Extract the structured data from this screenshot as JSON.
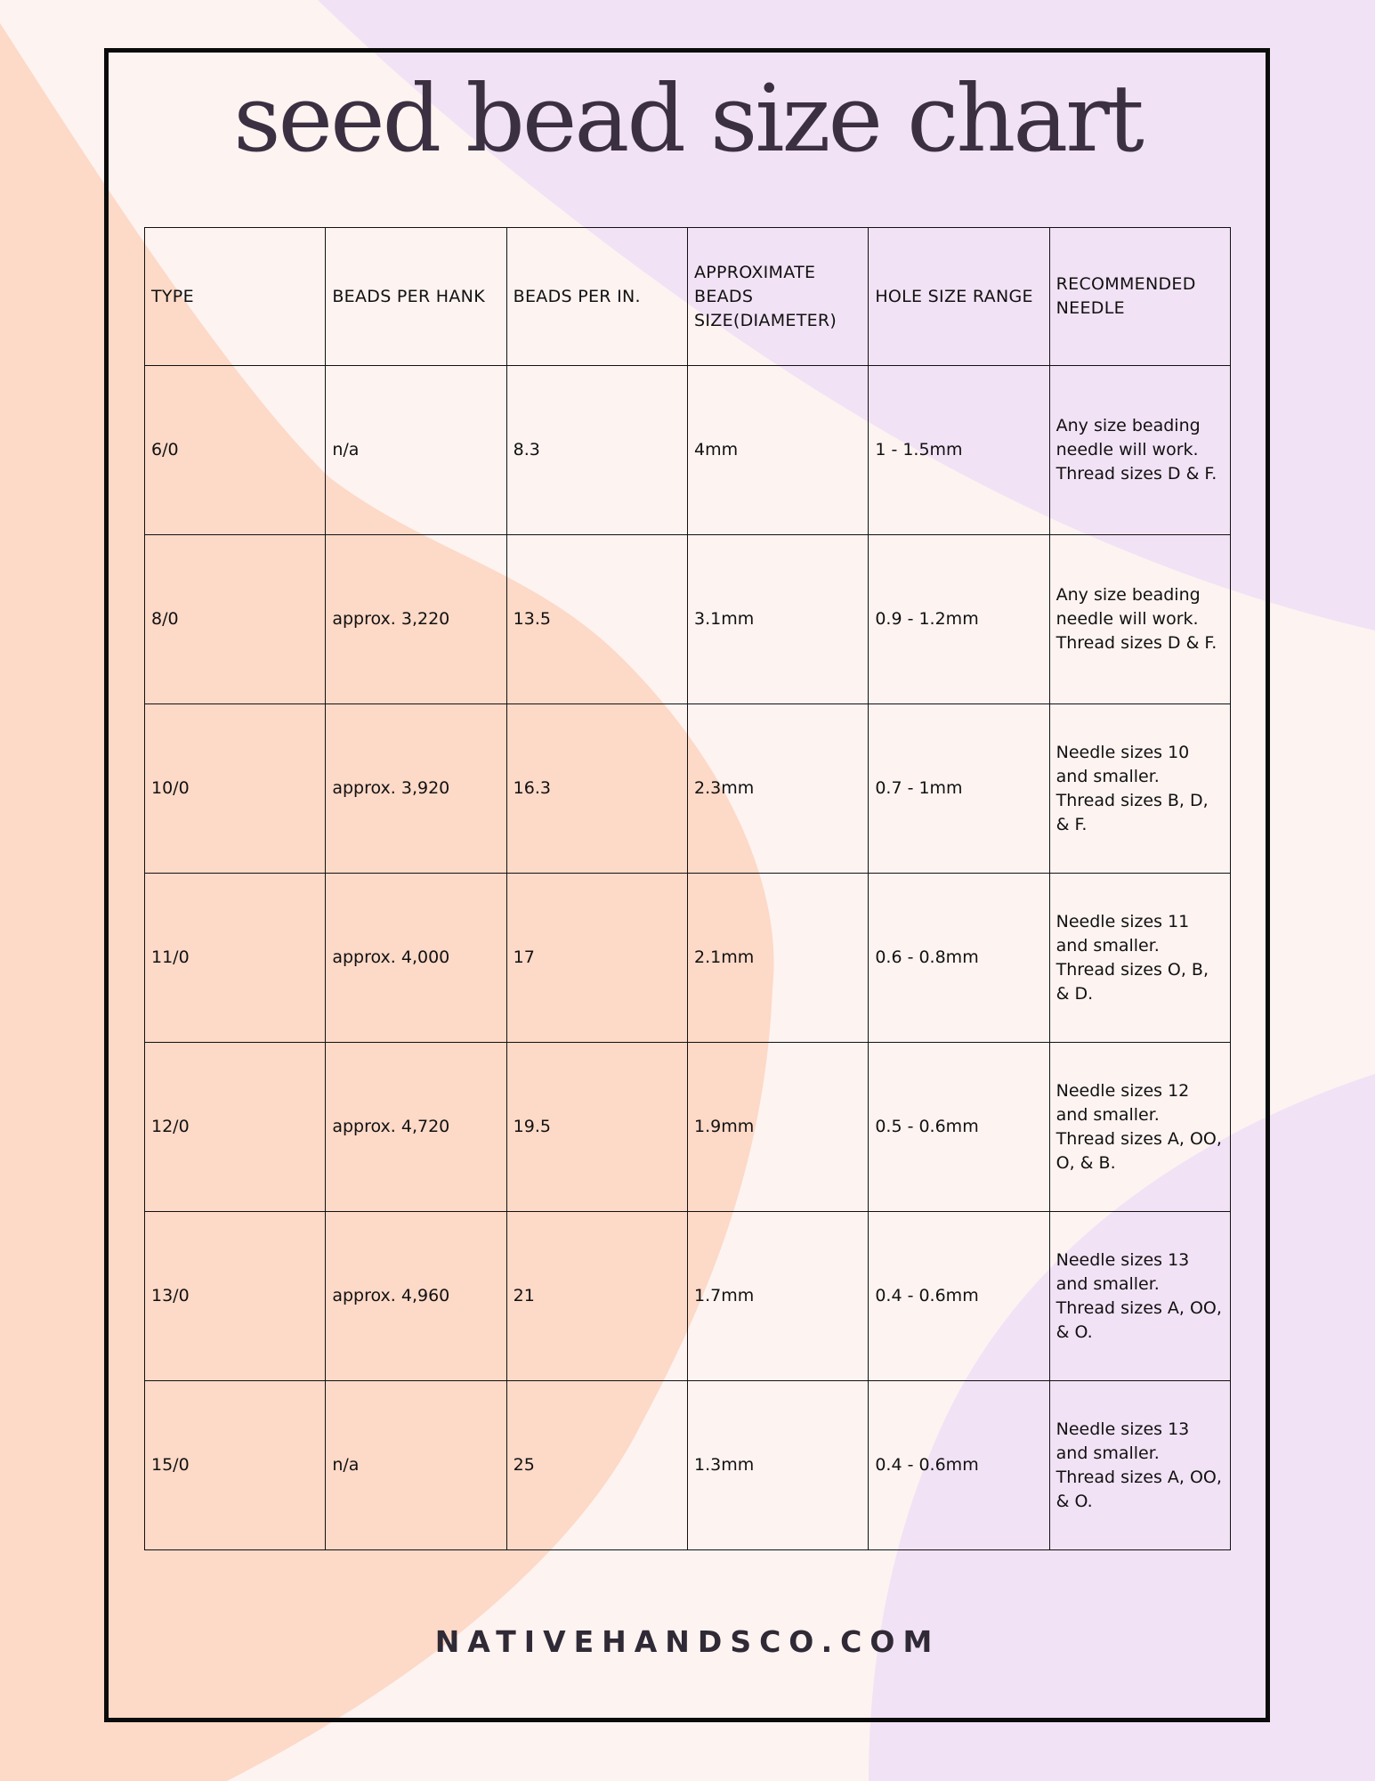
{
  "title": "seed bead size chart",
  "colors": {
    "background": "#fdf3f1",
    "peach": "#fdd9c7",
    "lavender": "#f2e2f5",
    "text": "#3b3041"
  },
  "table": {
    "headers": [
      "TYPE",
      "BEADS PER HANK",
      "BEADS PER IN.",
      "APPROXIMATE BEADS SIZE(Diameter)",
      "HOLE SIZE RANGE",
      "RECOMMENDED NEEDLE"
    ],
    "rows": [
      [
        "6/0",
        "n/a",
        "8.3",
        "4mm",
        "1 - 1.5mm",
        "Any size beading needle will work. Thread sizes D & F."
      ],
      [
        "8/0",
        "approx. 3,220",
        "13.5",
        "3.1mm",
        "0.9 - 1.2mm",
        "Any size beading needle will work. Thread sizes D & F."
      ],
      [
        "10/0",
        "approx. 3,920",
        "16.3",
        "2.3mm",
        "0.7 - 1mm",
        "Needle sizes 10 and smaller. Thread sizes B, D, & F."
      ],
      [
        "11/0",
        "approx. 4,000",
        "17",
        "2.1mm",
        "0.6 - 0.8mm",
        "Needle sizes 11 and smaller. Thread sizes O, B, & D."
      ],
      [
        "12/0",
        "approx. 4,720",
        "19.5",
        "1.9mm",
        "0.5 - 0.6mm",
        "Needle sizes 12 and smaller. Thread sizes A, OO, O, & B."
      ],
      [
        "13/0",
        "approx. 4,960",
        "21",
        "1.7mm",
        "0.4 - 0.6mm",
        "Needle sizes 13 and smaller. Thread sizes A, OO, & O."
      ],
      [
        "15/0",
        "n/a",
        "25",
        "1.3mm",
        "0.4 - 0.6mm",
        "Needle sizes 13 and smaller. Thread sizes A, OO, & O."
      ]
    ]
  },
  "footer": "NATIVEHANDSCO.COM"
}
